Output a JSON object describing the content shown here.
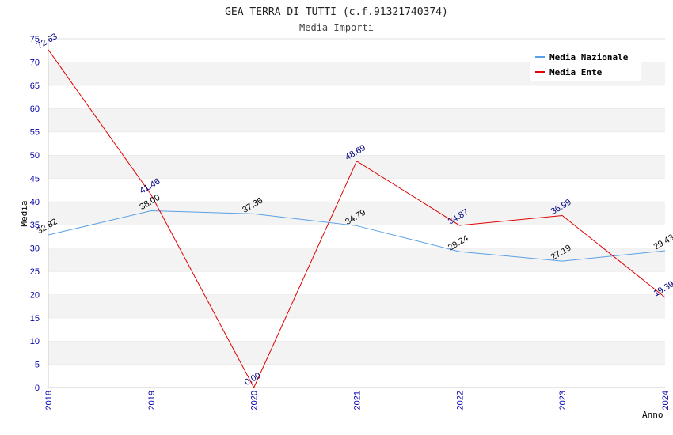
{
  "chart_data": {
    "type": "line",
    "title": "GEA TERRA DI TUTTI (c.f.91321740374)",
    "subtitle": "Media Importi",
    "xlabel": "Anno",
    "ylabel": "Media",
    "x": [
      "2018",
      "2019",
      "2020",
      "2021",
      "2022",
      "2023",
      "2024"
    ],
    "ylim": [
      0,
      75
    ],
    "yticks": [
      0,
      5,
      10,
      15,
      20,
      25,
      30,
      35,
      40,
      45,
      50,
      55,
      60,
      65,
      70,
      75
    ],
    "grid": "horizontal bands",
    "legend_position": "top-right",
    "series": [
      {
        "name": "Media Nazionale",
        "color": "#5aa0e6",
        "label_color": "#000000",
        "values": [
          32.82,
          38.0,
          37.36,
          34.79,
          29.24,
          27.19,
          29.43
        ],
        "labels": [
          "32.82",
          "38.00",
          "37.36",
          "34.79",
          "29.24",
          "27.19",
          "29.43"
        ]
      },
      {
        "name": "Media Ente",
        "color": "#e00000",
        "label_color": "#000080",
        "values": [
          72.63,
          41.46,
          0.0,
          48.69,
          34.87,
          36.99,
          19.39
        ],
        "labels": [
          "72.63",
          "41.46",
          "0.00",
          "48.69",
          "34.87",
          "36.99",
          "19.39"
        ]
      }
    ]
  }
}
